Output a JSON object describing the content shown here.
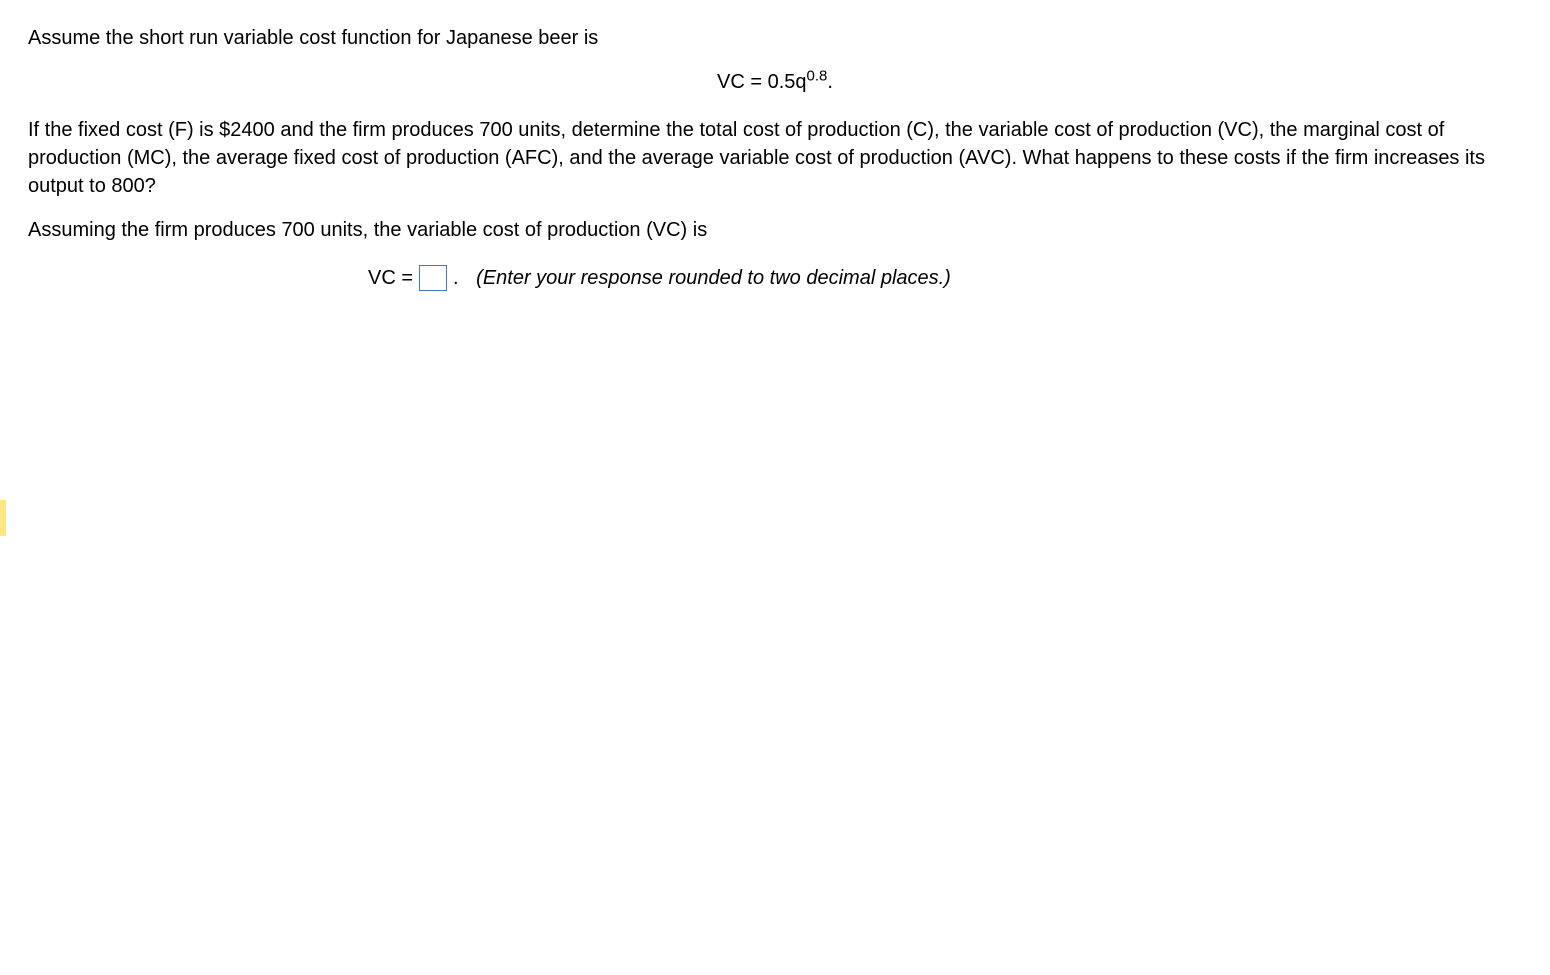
{
  "problem": {
    "intro": "Assume the short run variable cost function for Japanese beer is",
    "equation_prefix": "VC = 0.5q",
    "equation_exponent": "0.8",
    "equation_suffix": ".",
    "body": "If the fixed cost (F) is $2400 and the firm produces 700 units, determine the total cost of production (C), the variable cost of production (VC), the marginal cost of production (MC), the average fixed cost of production (AFC), and the average variable cost of production (AVC).  What happens to these costs if the firm increases its output to 800?",
    "prompt": "Assuming the firm produces 700 units, the variable cost of production (VC) is",
    "answer_label": "VC =",
    "answer_suffix": ".",
    "answer_hint": "(Enter your response rounded to two decimal places.)"
  }
}
